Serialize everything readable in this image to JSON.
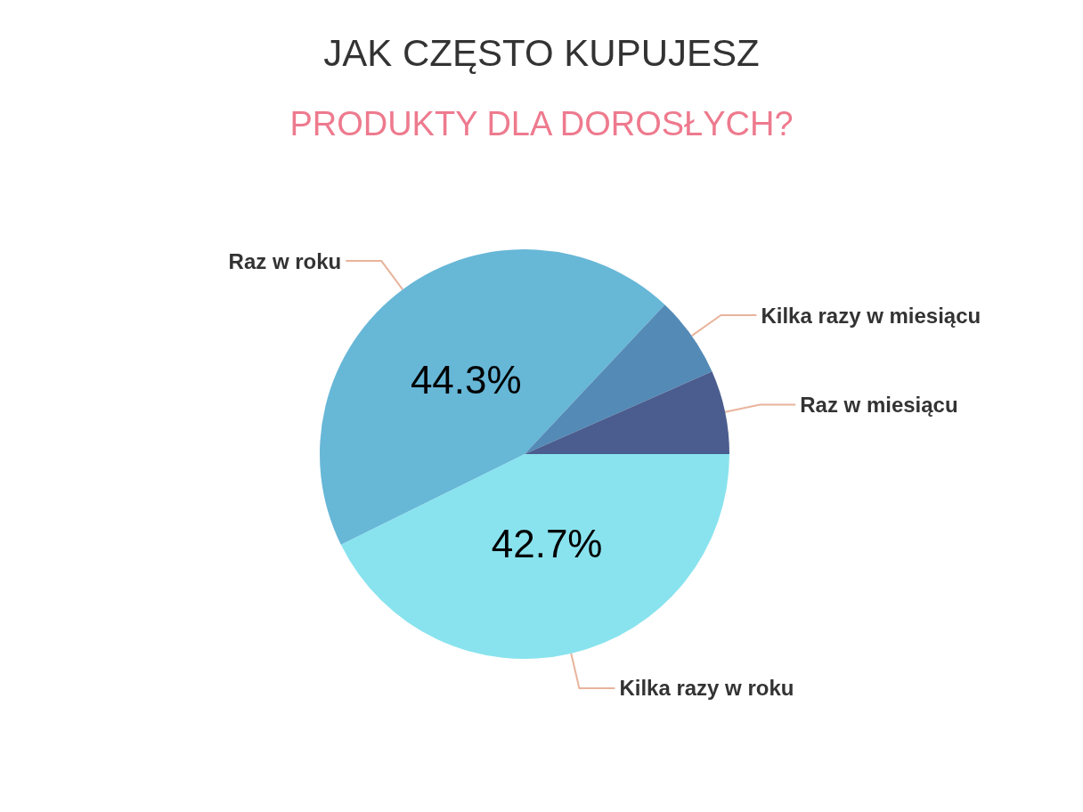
{
  "chart_data": {
    "type": "pie",
    "title": "JAK CZĘSTO KUPUJESZ",
    "subtitle": "PRODUKTY DLA DOROSŁYCH?",
    "categories": [
      "Kilka razy w roku",
      "Raz w roku",
      "Kilka razy w miesiącu",
      "Raz w miesiącu"
    ],
    "values": [
      42.7,
      44.3,
      6.4,
      6.6
    ],
    "value_labels": [
      "42.7%",
      "44.3%",
      null,
      null
    ],
    "colors": [
      "#89e3ee",
      "#67b7d7",
      "#548ab6",
      "#4a5d8e"
    ],
    "legend": false
  }
}
